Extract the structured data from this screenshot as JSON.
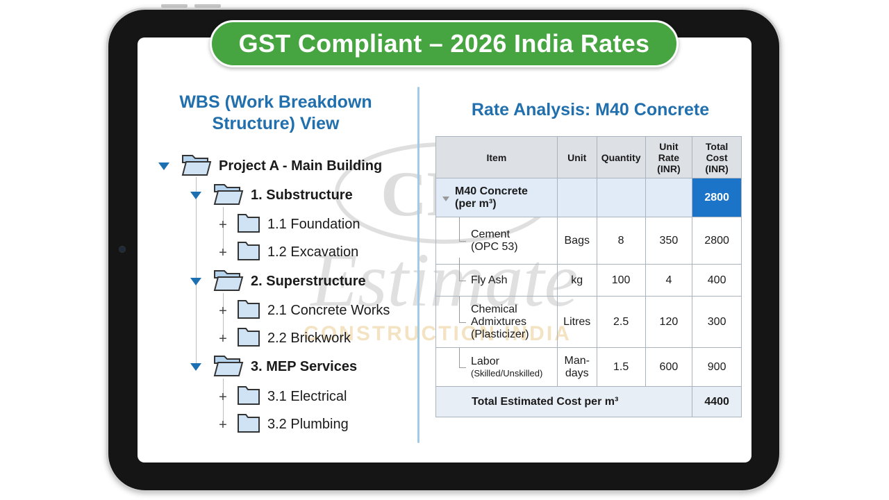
{
  "banner": {
    "text": "GST Compliant – 2026 India Rates"
  },
  "wbs": {
    "title_line1": "WBS (Work Breakdown",
    "title_line2": "Structure) View",
    "root": "Project A - Main Building",
    "groups": [
      {
        "label": "1. Substructure",
        "children": [
          "1.1 Foundation",
          "1.2 Excavation"
        ]
      },
      {
        "label": "2. Superstructure",
        "children": [
          "2.1 Concrete Works",
          "2.2 Brickwork"
        ]
      },
      {
        "label": "3. MEP Services",
        "children": [
          "3.1 Electrical",
          "3.2 Plumbing"
        ]
      }
    ]
  },
  "rate": {
    "title": "Rate Analysis: M40 Concrete",
    "headers": {
      "item": "Item",
      "unit": "Unit",
      "quantity": "Quantity",
      "unit_rate_1": "Unit",
      "unit_rate_2": "Rate",
      "unit_rate_3": "(INR)",
      "total_1": "Total",
      "total_2": "Cost",
      "total_3": "(INR)"
    },
    "material": {
      "line1": "M40 Concrete",
      "line2": "(per m³)",
      "total": "2800"
    },
    "rows": [
      {
        "item1": "Cement",
        "item2": "(OPC 53)",
        "unit": "Bags",
        "qty": "8",
        "rate": "350",
        "total": "2800"
      },
      {
        "item1": "Fly Ash",
        "unit": "kg",
        "qty": "100",
        "rate": "4",
        "total": "400"
      },
      {
        "item1": "Chemical",
        "item2": "Admixtures",
        "item3": "(Plasticizer)",
        "unit": "Litres",
        "qty": "2.5",
        "rate": "120",
        "total": "300"
      },
      {
        "item1": "Labor",
        "item2": "(Skilled/Unskilled)",
        "unit1": "Man-",
        "unit2": "days",
        "qty": "1.5",
        "rate": "600",
        "total": "900"
      }
    ],
    "total_label": "Total Estimated Cost per m³",
    "total_value": "4400"
  },
  "watermark": {
    "logo": "CEI",
    "script": "Estimate",
    "tagline": "CONSTRUCTION INDIA"
  },
  "colors": {
    "banner": "#46a541",
    "title": "#2170ad",
    "highlight": "#1b74c7",
    "bezel": "#151515"
  }
}
